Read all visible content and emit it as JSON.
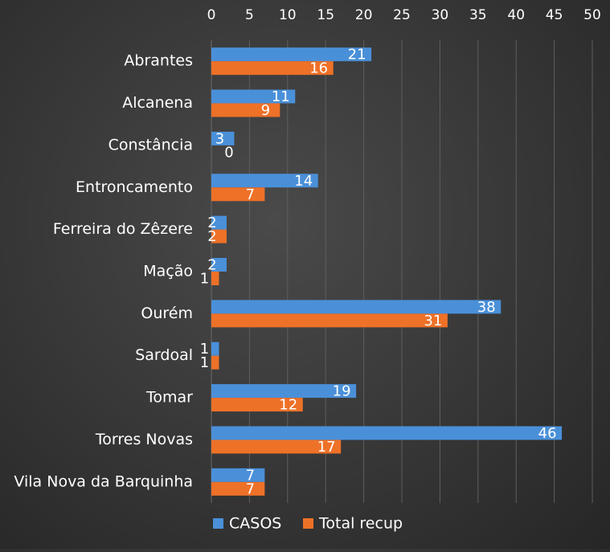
{
  "chart_data": {
    "type": "bar",
    "orientation": "horizontal",
    "categories": [
      "Abrantes",
      "Alcanena",
      "Constância",
      "Entroncamento",
      "Ferreira do Zêzere",
      "Mação",
      "Ourém",
      "Sardoal",
      "Tomar",
      "Torres Novas",
      "Vila Nova da Barquinha"
    ],
    "series": [
      {
        "name": "CASOS",
        "color": "#4a90d9",
        "values": [
          21,
          11,
          3,
          14,
          2,
          2,
          38,
          1,
          19,
          46,
          7
        ]
      },
      {
        "name": "Total recup",
        "color": "#ee7128",
        "values": [
          16,
          9,
          0,
          7,
          2,
          1,
          31,
          1,
          12,
          17,
          7
        ]
      }
    ],
    "xlim": [
      0,
      50
    ],
    "ticks": [
      0,
      5,
      10,
      15,
      20,
      25,
      30,
      35,
      40,
      45,
      50
    ],
    "x_axis_position": "top",
    "grid": true,
    "legend_position": "bottom",
    "data_labels": true,
    "title": "",
    "xlabel": "",
    "ylabel": ""
  }
}
